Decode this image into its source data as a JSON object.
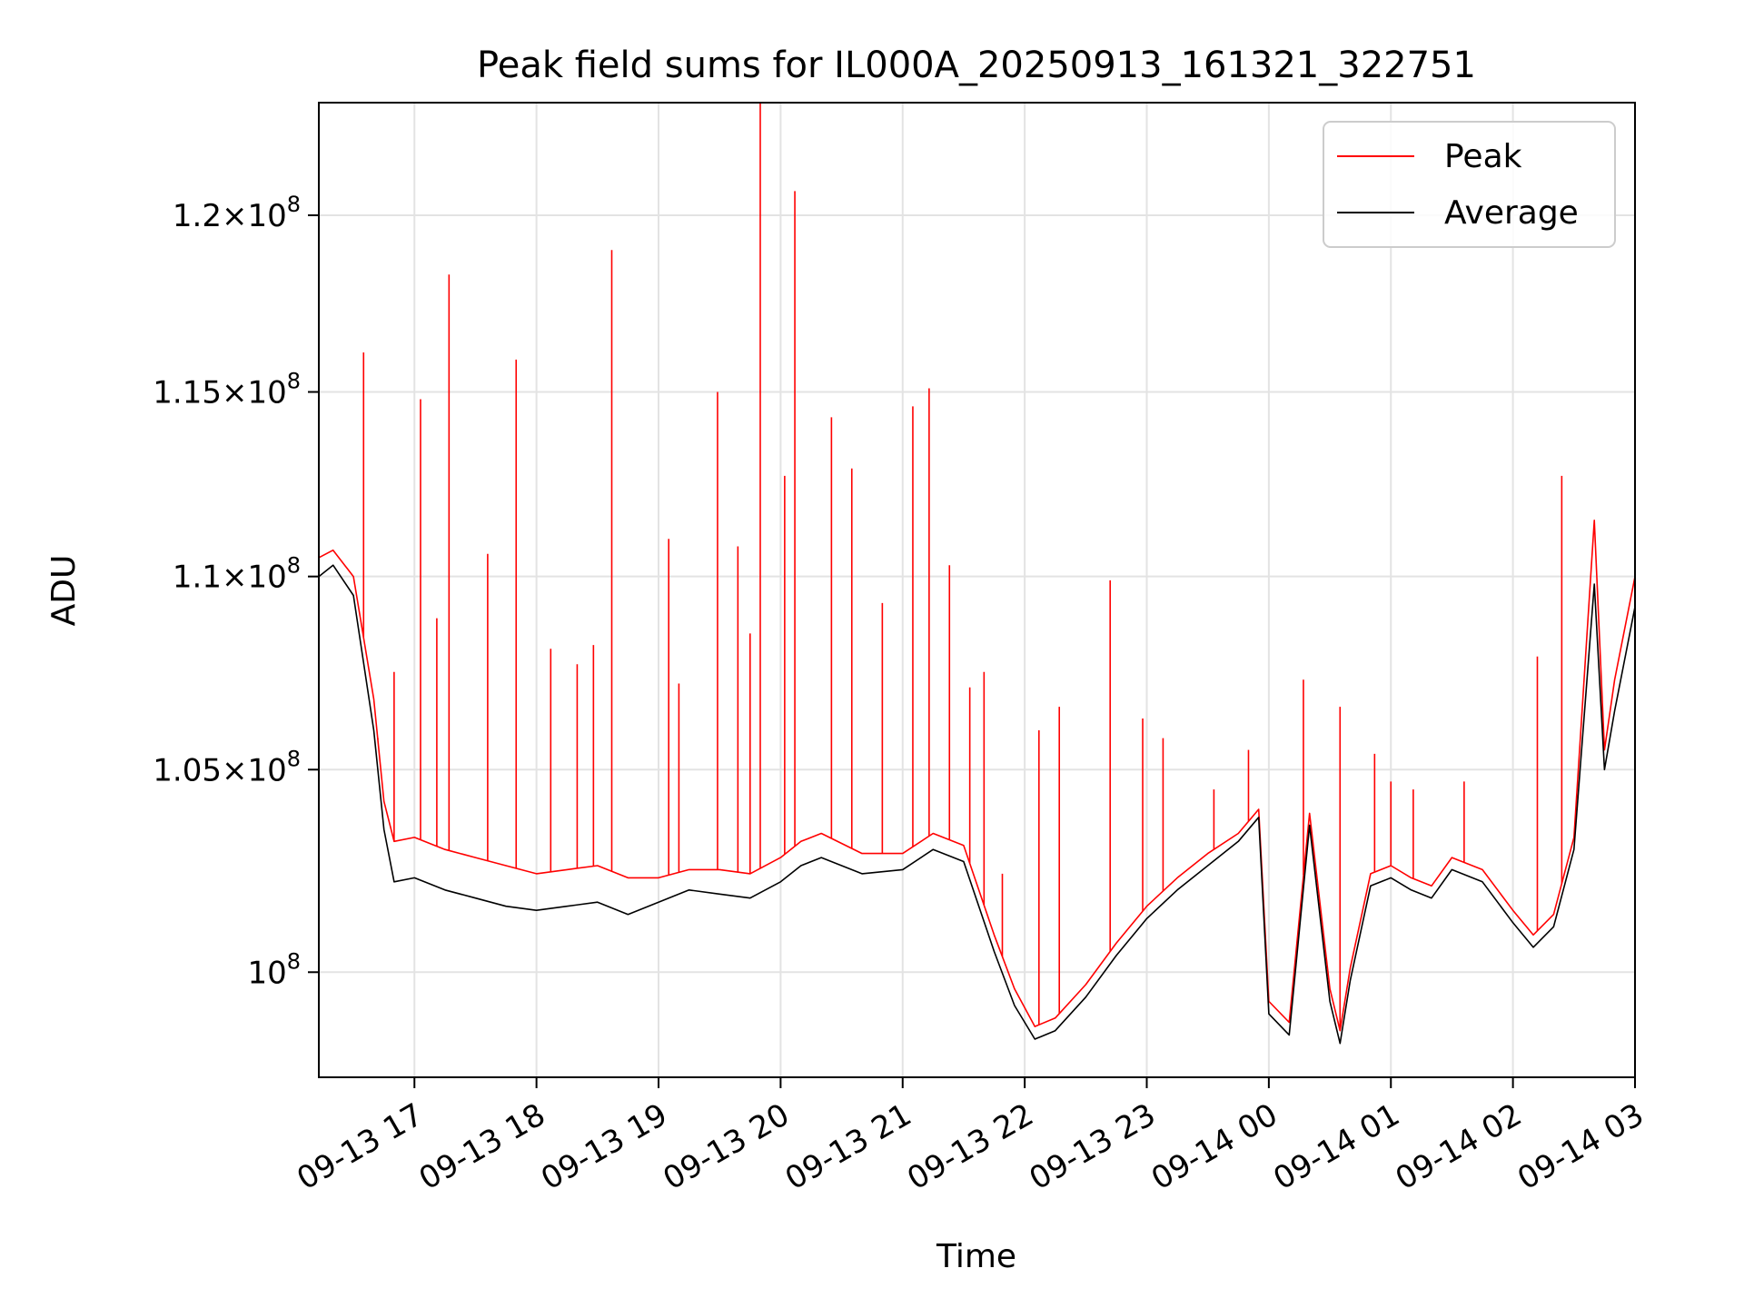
{
  "chart_data": {
    "type": "line",
    "title": "Peak field sums for IL000A_20250913_161321_322751",
    "xlabel": "Time",
    "ylabel": "ADU",
    "x_start": "2025-09-13T16:13",
    "x_end": "2025-09-14T03:00",
    "xlim": [
      "2025-09-13T16:13",
      "2025-09-14T03:00"
    ],
    "ylim": [
      97500000,
      123300000
    ],
    "y_scale": "log",
    "grid": true,
    "legend_position": "top-right",
    "x_ticks": [
      "09-13 17",
      "09-13 18",
      "09-13 19",
      "09-13 20",
      "09-13 21",
      "09-13 22",
      "09-13 23",
      "09-14 00",
      "09-14 01",
      "09-14 02",
      "09-14 03"
    ],
    "x_tick_times": [
      "2025-09-13T17:00",
      "2025-09-13T18:00",
      "2025-09-13T19:00",
      "2025-09-13T20:00",
      "2025-09-13T21:00",
      "2025-09-13T22:00",
      "2025-09-13T23:00",
      "2025-09-14T00:00",
      "2025-09-14T01:00",
      "2025-09-14T02:00",
      "2025-09-14T03:00"
    ],
    "y_ticks": [
      {
        "value": 100000000,
        "mantissa": "",
        "exp": "8"
      },
      {
        "value": 105000000,
        "mantissa": "1.05",
        "exp": "8"
      },
      {
        "value": 110000000,
        "mantissa": "1.1",
        "exp": "8"
      },
      {
        "value": 115000000,
        "mantissa": "1.15",
        "exp": "8"
      },
      {
        "value": 120000000,
        "mantissa": "1.2",
        "exp": "8"
      }
    ],
    "series": [
      {
        "name": "Average",
        "color": "#000000",
        "x": [
          "2025-09-13T16:13",
          "2025-09-13T16:20",
          "2025-09-13T16:30",
          "2025-09-13T16:40",
          "2025-09-13T16:45",
          "2025-09-13T16:50",
          "2025-09-13T17:00",
          "2025-09-13T17:15",
          "2025-09-13T17:30",
          "2025-09-13T17:45",
          "2025-09-13T18:00",
          "2025-09-13T18:15",
          "2025-09-13T18:30",
          "2025-09-13T18:45",
          "2025-09-13T19:00",
          "2025-09-13T19:15",
          "2025-09-13T19:30",
          "2025-09-13T19:45",
          "2025-09-13T20:00",
          "2025-09-13T20:10",
          "2025-09-13T20:20",
          "2025-09-13T20:40",
          "2025-09-13T21:00",
          "2025-09-13T21:15",
          "2025-09-13T21:30",
          "2025-09-13T21:45",
          "2025-09-13T21:55",
          "2025-09-13T22:05",
          "2025-09-13T22:15",
          "2025-09-13T22:30",
          "2025-09-13T22:45",
          "2025-09-13T23:00",
          "2025-09-13T23:15",
          "2025-09-13T23:30",
          "2025-09-13T23:45",
          "2025-09-13T23:55",
          "2025-09-14T00:00",
          "2025-09-14T00:10",
          "2025-09-14T00:20",
          "2025-09-14T00:30",
          "2025-09-14T00:35",
          "2025-09-14T00:40",
          "2025-09-14T00:50",
          "2025-09-14T01:00",
          "2025-09-14T01:10",
          "2025-09-14T01:20",
          "2025-09-14T01:30",
          "2025-09-14T01:45",
          "2025-09-14T02:00",
          "2025-09-14T02:10",
          "2025-09-14T02:20",
          "2025-09-14T02:30",
          "2025-09-14T02:40",
          "2025-09-14T02:45",
          "2025-09-14T02:50",
          "2025-09-14T03:00"
        ],
        "values": [
          110000000,
          110300000,
          109500000,
          106000000,
          103500000,
          102200000,
          102300000,
          102000000,
          101800000,
          101600000,
          101500000,
          101600000,
          101700000,
          101400000,
          101700000,
          102000000,
          101900000,
          101800000,
          102200000,
          102600000,
          102800000,
          102400000,
          102500000,
          103000000,
          102700000,
          100500000,
          99200000,
          98400000,
          98600000,
          99400000,
          100400000,
          101300000,
          102000000,
          102600000,
          103200000,
          103800000,
          99000000,
          98500000,
          103600000,
          99300000,
          98300000,
          99800000,
          102100000,
          102300000,
          102000000,
          101800000,
          102500000,
          102200000,
          101200000,
          100600000,
          101100000,
          103000000,
          109800000,
          105000000,
          106500000,
          109200000
        ]
      },
      {
        "name": "Peak",
        "color": "#ff0000",
        "x": [
          "2025-09-13T16:13",
          "2025-09-13T16:20",
          "2025-09-13T16:30",
          "2025-09-13T16:40",
          "2025-09-13T16:45",
          "2025-09-13T16:50",
          "2025-09-13T17:00",
          "2025-09-13T17:15",
          "2025-09-13T17:30",
          "2025-09-13T17:45",
          "2025-09-13T18:00",
          "2025-09-13T18:15",
          "2025-09-13T18:30",
          "2025-09-13T18:45",
          "2025-09-13T19:00",
          "2025-09-13T19:15",
          "2025-09-13T19:30",
          "2025-09-13T19:45",
          "2025-09-13T20:00",
          "2025-09-13T20:10",
          "2025-09-13T20:20",
          "2025-09-13T20:40",
          "2025-09-13T21:00",
          "2025-09-13T21:15",
          "2025-09-13T21:30",
          "2025-09-13T21:45",
          "2025-09-13T21:55",
          "2025-09-13T22:05",
          "2025-09-13T22:15",
          "2025-09-13T22:30",
          "2025-09-13T22:45",
          "2025-09-13T23:00",
          "2025-09-13T23:15",
          "2025-09-13T23:30",
          "2025-09-13T23:45",
          "2025-09-13T23:55",
          "2025-09-14T00:00",
          "2025-09-14T00:10",
          "2025-09-14T00:20",
          "2025-09-14T00:30",
          "2025-09-14T00:35",
          "2025-09-14T00:40",
          "2025-09-14T00:50",
          "2025-09-14T01:00",
          "2025-09-14T01:10",
          "2025-09-14T01:20",
          "2025-09-14T01:30",
          "2025-09-14T01:45",
          "2025-09-14T02:00",
          "2025-09-14T02:10",
          "2025-09-14T02:20",
          "2025-09-14T02:30",
          "2025-09-14T02:40",
          "2025-09-14T02:45",
          "2025-09-14T02:50",
          "2025-09-14T03:00"
        ],
        "values": [
          110500000,
          110700000,
          110000000,
          106800000,
          104200000,
          103200000,
          103300000,
          103000000,
          102800000,
          102600000,
          102400000,
          102500000,
          102600000,
          102300000,
          102300000,
          102500000,
          102500000,
          102400000,
          102800000,
          103200000,
          103400000,
          102900000,
          102900000,
          103400000,
          103100000,
          100900000,
          99600000,
          98700000,
          98900000,
          99700000,
          100700000,
          101600000,
          102300000,
          102900000,
          103400000,
          104000000,
          99300000,
          98800000,
          103900000,
          99600000,
          98600000,
          100100000,
          102400000,
          102600000,
          102300000,
          102100000,
          102800000,
          102500000,
          101500000,
          100900000,
          101400000,
          103300000,
          111500000,
          105500000,
          107300000,
          110000000
        ]
      }
    ],
    "peak_spikes": {
      "x": [
        "2025-09-13T16:35",
        "2025-09-13T16:42",
        "2025-09-13T16:50",
        "2025-09-13T17:03",
        "2025-09-13T17:11",
        "2025-09-13T17:17",
        "2025-09-13T17:36",
        "2025-09-13T17:50",
        "2025-09-13T18:07",
        "2025-09-13T18:20",
        "2025-09-13T18:28",
        "2025-09-13T18:37",
        "2025-09-13T19:05",
        "2025-09-13T19:10",
        "2025-09-13T19:29",
        "2025-09-13T19:39",
        "2025-09-13T19:45",
        "2025-09-13T19:50",
        "2025-09-13T20:02",
        "2025-09-13T20:07",
        "2025-09-13T20:25",
        "2025-09-13T20:35",
        "2025-09-13T20:50",
        "2025-09-13T21:05",
        "2025-09-13T21:13",
        "2025-09-13T21:23",
        "2025-09-13T21:33",
        "2025-09-13T21:40",
        "2025-09-13T21:49",
        "2025-09-13T22:07",
        "2025-09-13T22:17",
        "2025-09-13T22:42",
        "2025-09-13T22:58",
        "2025-09-13T23:08",
        "2025-09-13T23:33",
        "2025-09-13T23:50",
        "2025-09-14T00:17",
        "2025-09-14T00:35",
        "2025-09-14T00:52",
        "2025-09-14T01:00",
        "2025-09-14T01:11",
        "2025-09-14T01:36",
        "2025-09-14T02:12",
        "2025-09-14T02:24"
      ],
      "values": [
        116100000,
        105800000,
        107500000,
        114800000,
        108900000,
        118300000,
        110600000,
        115900000,
        108100000,
        107700000,
        108200000,
        119000000,
        111000000,
        107200000,
        115000000,
        110800000,
        108500000,
        123300000,
        112700000,
        120700000,
        114300000,
        112900000,
        109300000,
        114600000,
        115100000,
        110300000,
        107100000,
        107500000,
        102400000,
        106000000,
        106600000,
        109900000,
        106300000,
        105800000,
        104500000,
        105500000,
        107300000,
        106600000,
        105400000,
        104700000,
        104500000,
        104700000,
        107900000,
        112700000
      ]
    }
  }
}
